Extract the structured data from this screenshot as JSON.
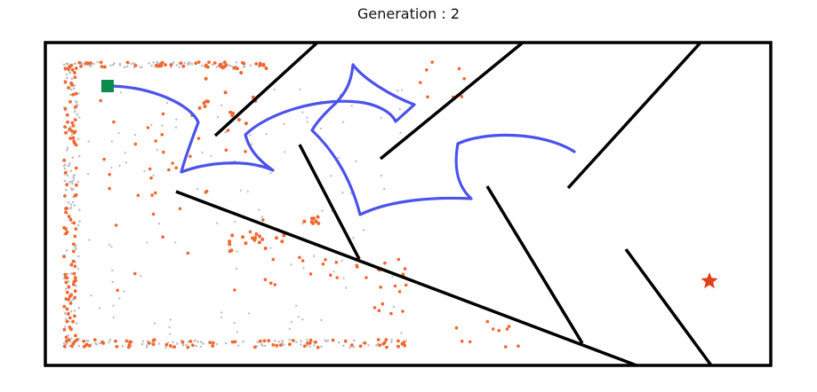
{
  "title": "Generation : 2",
  "colors": {
    "border": "#000000",
    "wall": "#000000",
    "trajectory": "#4c52ec",
    "start": "#0b8a4e",
    "goal": "#e0411a",
    "archive_dot": "#f2672e",
    "explored_dot": "#bfc0c8"
  },
  "legend_marks": {
    "start_icon": "square-start-marker",
    "goal_icon": "star-goal-marker"
  }
}
